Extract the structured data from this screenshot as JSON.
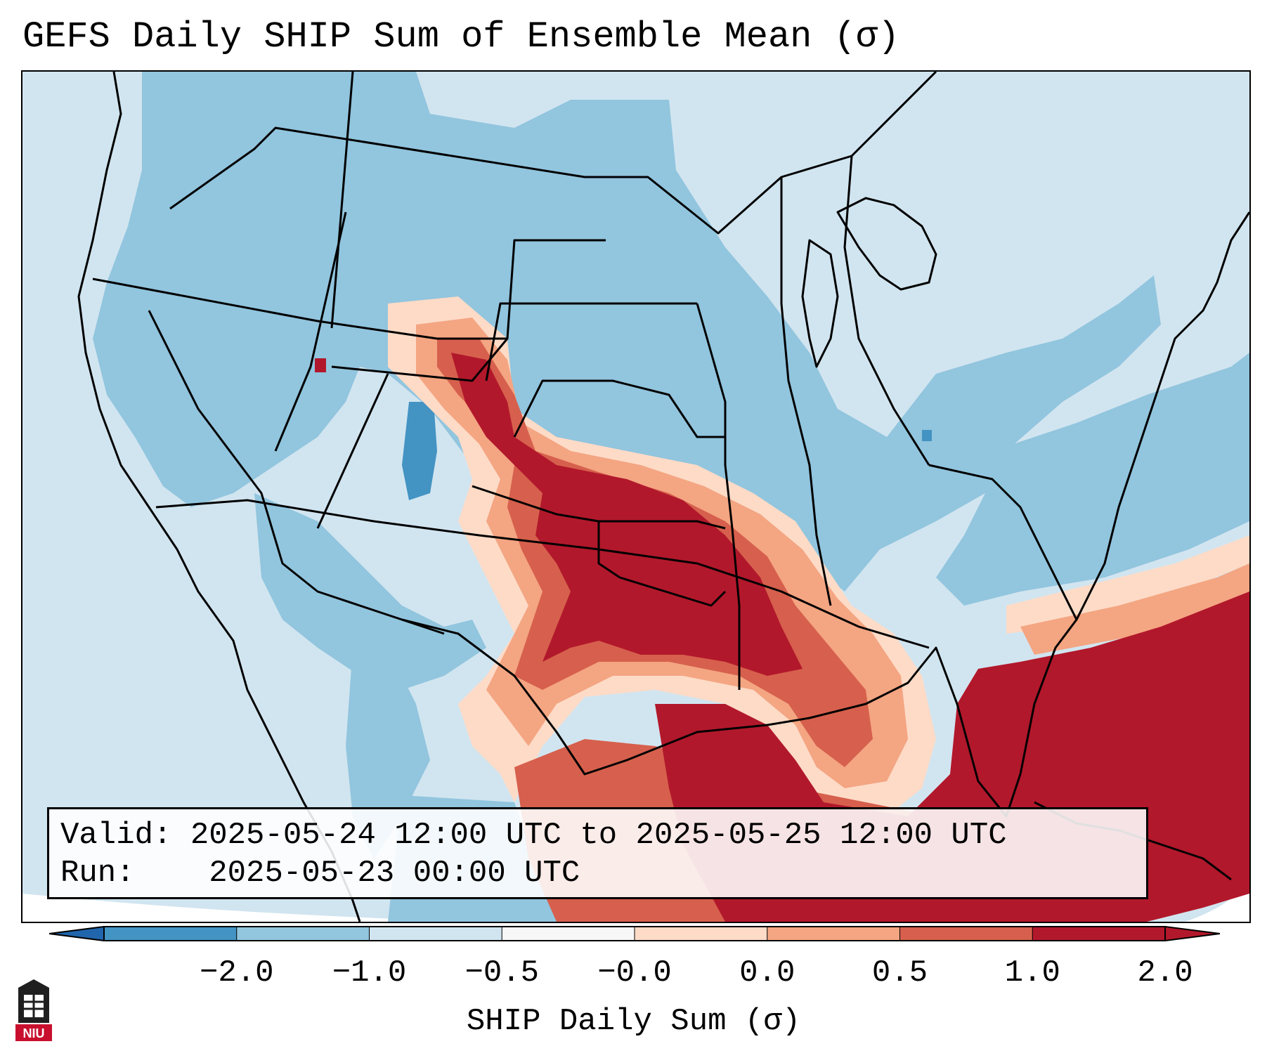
{
  "title": "GEFS Daily SHIP Sum of Ensemble Mean (σ)",
  "info": {
    "valid_label": "Valid:",
    "valid_value": "2025-05-24 12:00 UTC to 2025-05-25 12:00 UTC",
    "run_label": "Run:",
    "run_value": "2025-05-23 00:00 UTC"
  },
  "colorbar": {
    "label": "SHIP Daily Sum (σ)",
    "ticks": [
      "−2.0",
      "−1.0",
      "−0.5",
      "−0.0",
      "0.0",
      "0.5",
      "1.0",
      "2.0"
    ],
    "segment_colors": [
      "#4393c3",
      "#92c5de",
      "#d1e5f0",
      "#f7f7f7",
      "#fddbc7",
      "#f4a582",
      "#d6604d",
      "#b2182b"
    ],
    "extend_low_color": "#2166ac",
    "extend_high_color": "#b2182b"
  },
  "logo": {
    "text": "NIU"
  },
  "colors": {
    "land_light_blue": "#d1e5f0",
    "mid_blue": "#92c5de",
    "dark_blue": "#4393c3",
    "strong_red": "#b2182b",
    "medium_red": "#d6604d",
    "light_salmon": "#f4a582",
    "peach": "#fddbc7"
  }
}
